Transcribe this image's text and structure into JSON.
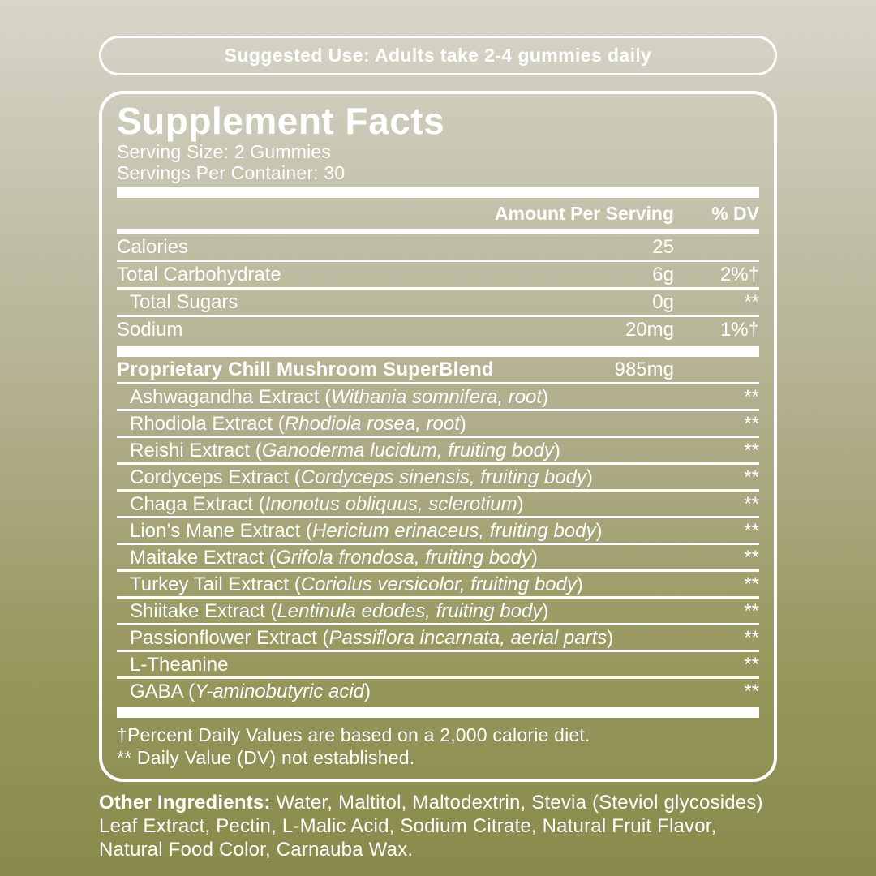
{
  "colors": {
    "bg_top": "#d7d6ca",
    "bg_mid": "#aeac88",
    "bg_bottom": "#888a4b",
    "text": "#ffffff"
  },
  "suggested_use": {
    "text": "Suggested Use: Adults take 2-4 gummies daily"
  },
  "panel": {
    "title": "Supplement Facts",
    "serving_size": "Serving Size: 2 Gummies",
    "servings_per_container": "Servings Per Container: 30",
    "col_amount": "Amount Per Serving",
    "col_dv": "% DV",
    "nutrients": [
      {
        "name": "Calories",
        "amount": "25",
        "dv": "",
        "indent": false
      },
      {
        "name": "Total Carbohydrate",
        "amount": "6g",
        "dv": "2%†",
        "indent": false
      },
      {
        "name": "Total Sugars",
        "amount": "0g",
        "dv": "**",
        "indent": true
      },
      {
        "name": "Sodium",
        "amount": "20mg",
        "dv": "1%†",
        "indent": false
      }
    ],
    "blend": {
      "name": "Proprietary Chill Mushroom SuperBlend",
      "amount": "985mg",
      "ingredients": [
        {
          "name": "Ashwagandha Extract",
          "latin": "Withania somnifera, root",
          "dv": "**"
        },
        {
          "name": "Rhodiola Extract",
          "latin": "Rhodiola rosea, root",
          "dv": "**"
        },
        {
          "name": "Reishi Extract",
          "latin": "Ganoderma lucidum, fruiting body",
          "dv": "**"
        },
        {
          "name": "Cordyceps Extract",
          "latin": "Cordyceps sinensis, fruiting body",
          "dv": "**"
        },
        {
          "name": "Chaga Extract",
          "latin": "Inonotus obliquus, sclerotium",
          "dv": "**"
        },
        {
          "name": "Lion’s Mane Extract",
          "latin": "Hericium erinaceus, fruiting body",
          "dv": "**"
        },
        {
          "name": "Maitake Extract",
          "latin": "Grifola frondosa, fruiting body",
          "dv": "**"
        },
        {
          "name": "Turkey Tail Extract",
          "latin": "Coriolus versicolor, fruiting body",
          "dv": "**"
        },
        {
          "name": "Shiitake Extract",
          "latin": "Lentinula edodes, fruiting body",
          "dv": "**"
        },
        {
          "name": "Passionflower Extract",
          "latin": "Passiflora incarnata, aerial parts",
          "dv": "**"
        },
        {
          "name": "L-Theanine",
          "latin": "",
          "dv": "**"
        },
        {
          "name": "GABA",
          "latin": "Y-aminobutyric acid",
          "dv": "**"
        }
      ]
    },
    "footnotes": [
      "†Percent Daily Values are based on a 2,000 calorie diet.",
      "** Daily Value (DV) not established."
    ]
  },
  "other_ingredients": {
    "label": "Other Ingredients:",
    "text": " Water, Maltitol, Maltodextrin, Stevia (Steviol glycosides) Leaf Extract, Pectin, L-Malic Acid, Sodium Citrate, Natural Fruit Flavor, Natural Food Color, Carnauba Wax."
  }
}
